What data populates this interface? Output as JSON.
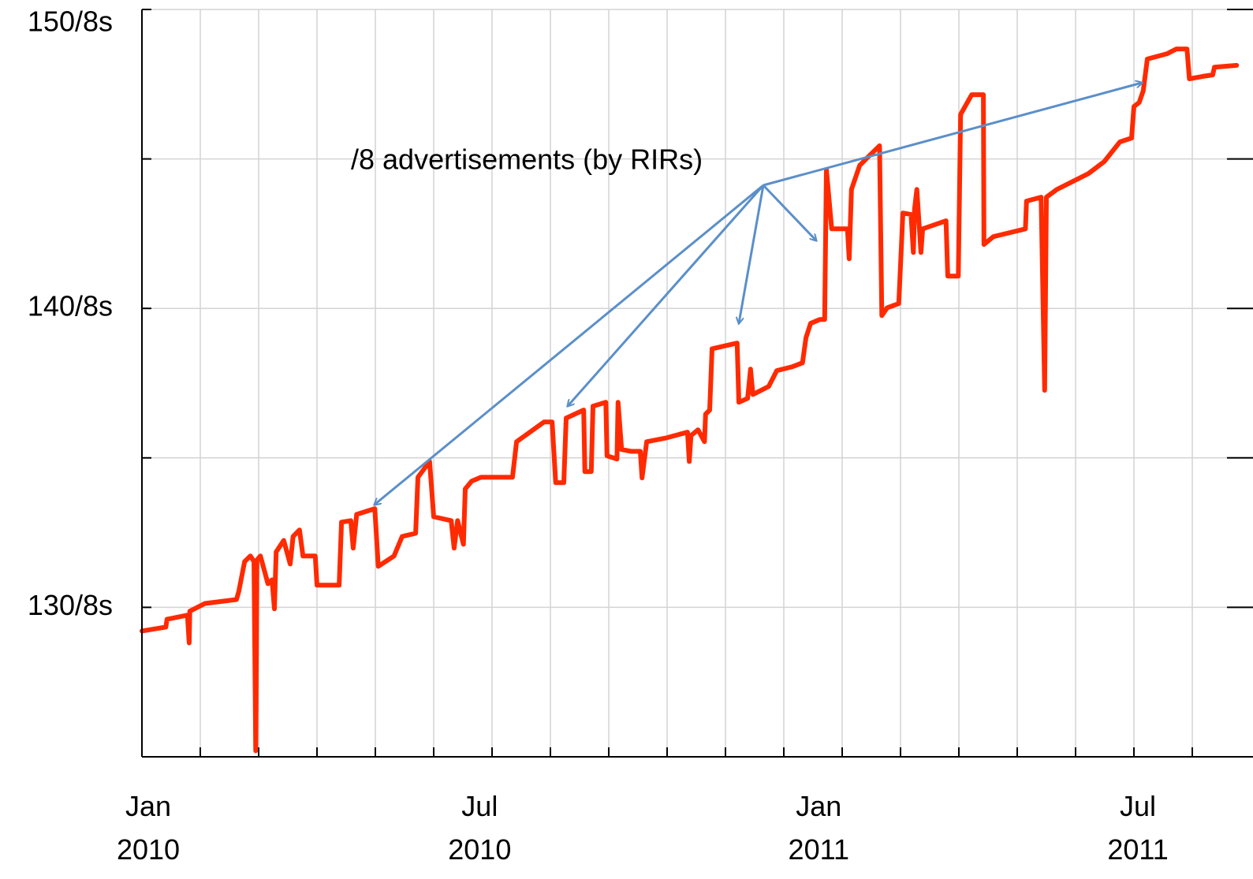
{
  "chart_data": {
    "type": "line",
    "annotation": "/8 advertisements (by RIRs)",
    "xlim": [
      0,
      18.76
    ],
    "ylim": [
      125,
      150
    ],
    "xticks": [
      {
        "value": 0,
        "label": "Jan 2010"
      },
      {
        "value": 5.68,
        "label": "Jul 2010"
      },
      {
        "value": 11.49,
        "label": "Jan 2011"
      },
      {
        "value": 16.96,
        "label": "Jul 2011"
      }
    ],
    "xgrid": [
      0,
      1,
      2,
      3,
      4,
      5,
      6,
      7,
      8,
      9,
      10,
      11,
      12,
      13,
      14,
      15,
      16,
      17,
      18
    ],
    "yticks": [
      {
        "value": 130,
        "label": "130/8s"
      },
      {
        "value": 140,
        "label": "140/8s"
      },
      {
        "value": 150,
        "label": "150/8s"
      }
    ],
    "ygrid": [
      130,
      135,
      140,
      145,
      150
    ],
    "grid": true,
    "series": [
      {
        "color": "#ff2a00",
        "x": [
          0,
          0.41,
          0.43,
          0.78,
          0.81,
          0.82,
          1.08,
          1.62,
          1.66,
          1.76,
          1.86,
          1.92,
          1.95,
          1.97,
          2.03,
          2.16,
          2.23,
          2.27,
          2.3,
          2.43,
          2.54,
          2.59,
          2.7,
          2.76,
          2.84,
          2.97,
          3.0,
          3.38,
          3.42,
          3.58,
          3.62,
          3.68,
          3.99,
          4.05,
          4.32,
          4.46,
          4.69,
          4.73,
          4.93,
          5.0,
          5.3,
          5.35,
          5.41,
          5.51,
          5.54,
          5.65,
          5.81,
          6.35,
          6.42,
          6.89,
          7.03,
          7.09,
          7.23,
          7.27,
          7.57,
          7.59,
          7.7,
          7.73,
          7.95,
          7.97,
          8.14,
          8.16,
          8.22,
          8.38,
          8.54,
          8.57,
          8.65,
          8.99,
          9.35,
          9.38,
          9.41,
          9.53,
          9.64,
          9.66,
          9.73,
          9.77,
          10.2,
          10.23,
          10.38,
          10.43,
          10.47,
          10.74,
          10.88,
          11.15,
          11.32,
          11.38,
          11.46,
          11.62,
          11.7,
          11.73,
          11.82,
          12.09,
          12.12,
          12.16,
          12.3,
          12.43,
          12.64,
          12.68,
          12.77,
          12.97,
          13.04,
          13.18,
          13.22,
          13.24,
          13.28,
          13.35,
          13.38,
          13.78,
          13.81,
          13.99,
          14.03,
          14.22,
          14.42,
          14.43,
          14.59,
          15.14,
          15.16,
          15.41,
          15.47,
          15.5,
          15.68,
          16.22,
          16.49,
          16.76,
          16.96,
          17.0,
          17.09,
          17.16,
          17.23,
          17.57,
          17.73,
          17.91,
          17.95,
          18.18,
          18.35,
          18.38,
          18.76
        ],
        "values": [
          129.21,
          129.34,
          129.6,
          129.74,
          128.81,
          129.87,
          130.13,
          130.26,
          130.53,
          131.53,
          131.72,
          131.53,
          125.2,
          131.58,
          131.72,
          130.79,
          130.92,
          129.95,
          131.85,
          132.24,
          131.45,
          132.37,
          132.59,
          131.72,
          131.72,
          131.72,
          130.74,
          130.74,
          132.85,
          132.9,
          131.98,
          133.11,
          133.3,
          131.37,
          131.72,
          132.37,
          132.48,
          134.35,
          134.88,
          133.03,
          132.9,
          131.98,
          132.9,
          132.11,
          133.96,
          134.22,
          134.35,
          134.35,
          135.54,
          136.2,
          136.2,
          134.17,
          134.17,
          136.33,
          136.6,
          134.54,
          134.54,
          136.73,
          136.86,
          135.07,
          134.96,
          136.86,
          135.28,
          135.22,
          135.22,
          134.33,
          135.54,
          135.67,
          135.86,
          134.88,
          135.75,
          135.94,
          135.54,
          136.46,
          136.6,
          138.65,
          138.84,
          136.86,
          136.99,
          137.97,
          137.12,
          137.39,
          137.92,
          138.05,
          138.18,
          139.02,
          139.5,
          139.63,
          139.63,
          144.64,
          142.66,
          142.66,
          141.66,
          143.98,
          144.78,
          145.04,
          145.44,
          139.76,
          140.02,
          140.16,
          143.19,
          143.14,
          141.87,
          143.32,
          143.98,
          141.87,
          142.66,
          142.93,
          141.08,
          141.08,
          146.49,
          147.15,
          147.15,
          142.14,
          142.4,
          142.66,
          143.59,
          143.72,
          137.26,
          143.72,
          143.98,
          144.51,
          144.91,
          145.57,
          145.7,
          146.75,
          146.89,
          147.28,
          148.34,
          148.52,
          148.68,
          148.68,
          147.68,
          147.76,
          147.81,
          148.07,
          148.13
        ]
      }
    ]
  }
}
